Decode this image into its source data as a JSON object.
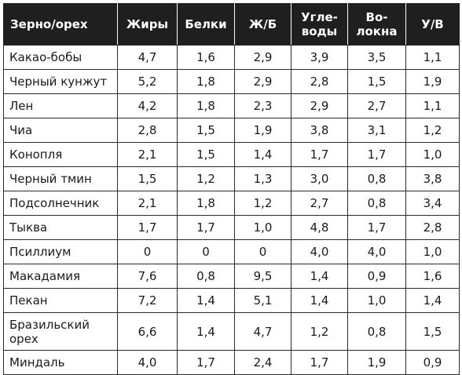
{
  "table": {
    "headers": [
      "Зерно/орех",
      "Жиры",
      "Белки",
      "Ж/Б",
      "Угле-\nводы",
      "Во-\nлокна",
      "У/В"
    ],
    "rows": [
      [
        "Какао-бобы",
        "4,7",
        "1,6",
        "2,9",
        "3,9",
        "3,5",
        "1,1"
      ],
      [
        "Черный кунжут",
        "5,2",
        "1,8",
        "2,9",
        "2,8",
        "1,5",
        "1,9"
      ],
      [
        "Лен",
        "4,2",
        "1,8",
        "2,3",
        "2,9",
        "2,7",
        "1,1"
      ],
      [
        "Чиа",
        "2,8",
        "1,5",
        "1,9",
        "3,8",
        "3,1",
        "1,2"
      ],
      [
        "Конопля",
        "2,1",
        "1,5",
        "1,4",
        "1,7",
        "1,7",
        "1,0"
      ],
      [
        "Черный тмин",
        "1,5",
        "1,2",
        "1,3",
        "3,0",
        "0,8",
        "3,8"
      ],
      [
        "Подсолнечник",
        "2,1",
        "1,8",
        "1,2",
        "2,7",
        "0,8",
        "3,4"
      ],
      [
        "Тыква",
        "1,7",
        "1,7",
        "1,0",
        "4,8",
        "1,7",
        "2,8"
      ],
      [
        "Псиллиум",
        "0",
        "0",
        "0",
        "4,0",
        "4,0",
        "1,0"
      ],
      [
        "Макадамия",
        "7,6",
        "0,8",
        "9,5",
        "1,4",
        "0,9",
        "1,6"
      ],
      [
        "Пекан",
        "7,2",
        "1,4",
        "5,1",
        "1,4",
        "1,0",
        "1,4"
      ],
      [
        "Бразильский\nорех",
        "6,6",
        "1,4",
        "4,7",
        "1,2",
        "0,8",
        "1,5"
      ],
      [
        "Миндаль",
        "4,0",
        "1,7",
        "2,4",
        "1,7",
        "1,9",
        "0,9"
      ]
    ]
  },
  "colors": {
    "header_bg": "#1f1f1f",
    "header_text": "#ffffff",
    "border": "#2a2a2a"
  }
}
